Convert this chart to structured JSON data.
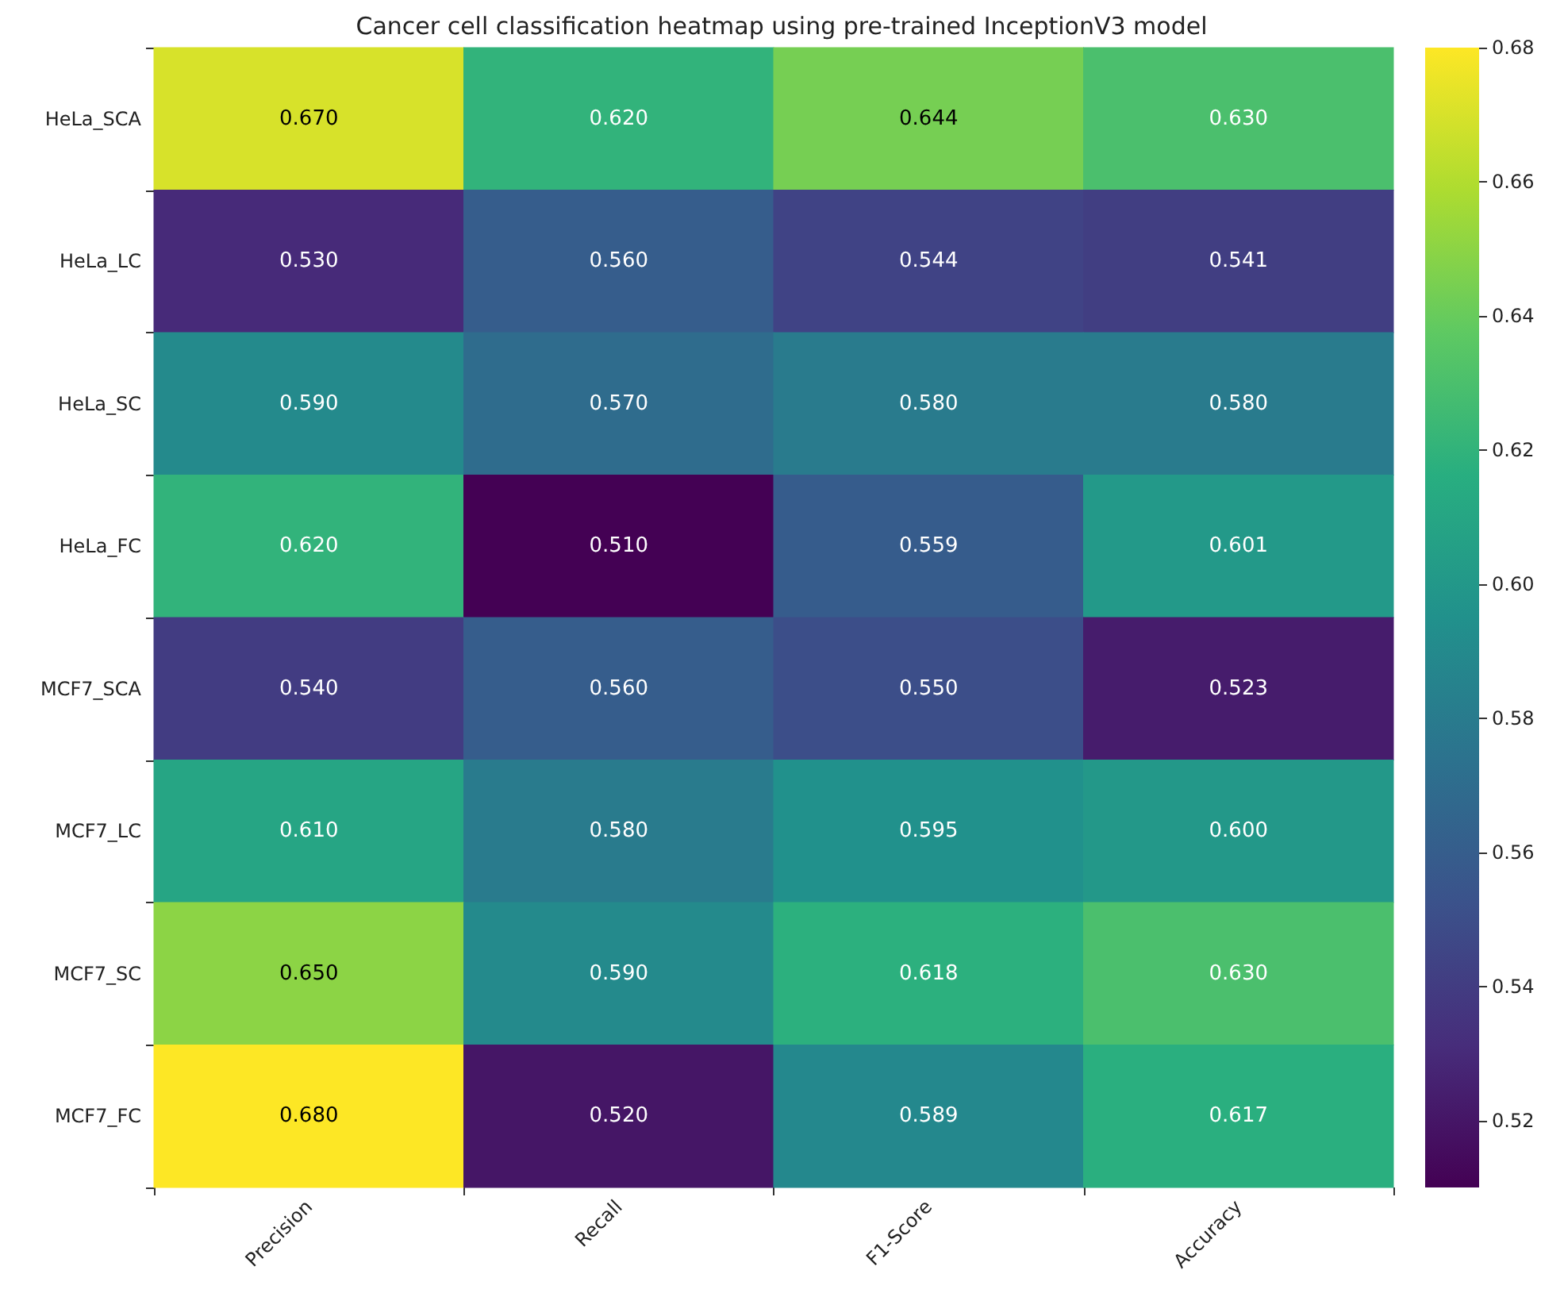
{
  "chart_data": {
    "type": "heatmap",
    "title": "Cancer cell classification heatmap using pre-trained InceptionV3 model",
    "categories": [
      "Precision",
      "Recall",
      "F1-Score",
      "Accuracy"
    ],
    "y_categories": [
      "HeLa_SCA",
      "HeLa_LC",
      "HeLa_SC",
      "HeLa_FC",
      "MCF7_SCA",
      "MCF7_LC",
      "MCF7_SC",
      "MCF7_FC"
    ],
    "cells": [
      [
        0.67,
        0.62,
        0.644,
        0.63
      ],
      [
        0.53,
        0.56,
        0.544,
        0.541
      ],
      [
        0.59,
        0.57,
        0.58,
        0.58
      ],
      [
        0.62,
        0.51,
        0.559,
        0.601
      ],
      [
        0.54,
        0.56,
        0.55,
        0.523
      ],
      [
        0.61,
        0.58,
        0.595,
        0.6
      ],
      [
        0.65,
        0.59,
        0.618,
        0.63
      ],
      [
        0.68,
        0.52,
        0.589,
        0.617
      ]
    ],
    "cell_labels": [
      [
        "0.670",
        "0.620",
        "0.644",
        "0.630"
      ],
      [
        "0.530",
        "0.560",
        "0.544",
        "0.541"
      ],
      [
        "0.590",
        "0.570",
        "0.580",
        "0.580"
      ],
      [
        "0.620",
        "0.510",
        "0.559",
        "0.601"
      ],
      [
        "0.540",
        "0.560",
        "0.550",
        "0.523"
      ],
      [
        "0.610",
        "0.580",
        "0.595",
        "0.600"
      ],
      [
        "0.650",
        "0.590",
        "0.618",
        "0.630"
      ],
      [
        "0.680",
        "0.520",
        "0.589",
        "0.617"
      ]
    ],
    "clim": [
      0.51,
      0.68
    ],
    "cticks": [
      0.52,
      0.54,
      0.56,
      0.58,
      {
        "value": 0.6,
        "label": "0.60"
      },
      0.62,
      0.64,
      0.66,
      0.68
    ]
  }
}
